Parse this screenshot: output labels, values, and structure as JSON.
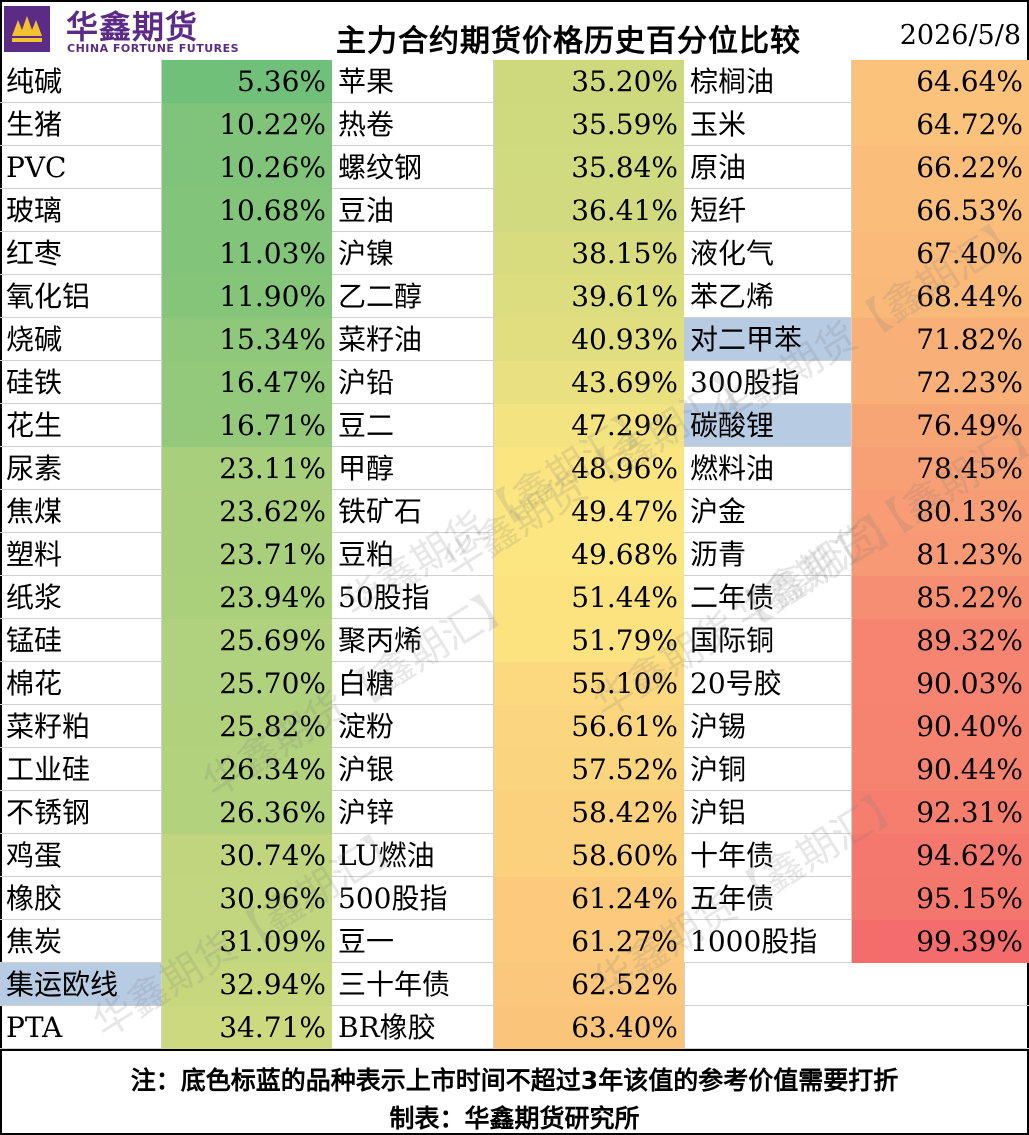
{
  "header": {
    "logo_cn": "华鑫期货",
    "logo_en": "CHINA FORTUNE FUTURES",
    "title": "主力合约期货价格历史百分位比较",
    "date": "2026/5/8"
  },
  "watermark": "华鑫期货【鑫期汇】",
  "colors": {
    "low": "#5fbb78",
    "mid": "#fde681",
    "high": "#f36b6c",
    "blue_flag": "#b7cbe3"
  },
  "chart_data": {
    "type": "table",
    "title": "主力合约期货价格历史百分位比较",
    "columns": [
      [
        {
          "name": "纯碱",
          "value": 5.36,
          "label": "5.36%"
        },
        {
          "name": "生猪",
          "value": 10.22,
          "label": "10.22%"
        },
        {
          "name": "PVC",
          "value": 10.26,
          "label": "10.26%"
        },
        {
          "name": "玻璃",
          "value": 10.68,
          "label": "10.68%"
        },
        {
          "name": "红枣",
          "value": 11.03,
          "label": "11.03%"
        },
        {
          "name": "氧化铝",
          "value": 11.9,
          "label": "11.90%"
        },
        {
          "name": "烧碱",
          "value": 15.34,
          "label": "15.34%"
        },
        {
          "name": "硅铁",
          "value": 16.47,
          "label": "16.47%"
        },
        {
          "name": "花生",
          "value": 16.71,
          "label": "16.71%"
        },
        {
          "name": "尿素",
          "value": 23.11,
          "label": "23.11%"
        },
        {
          "name": "焦煤",
          "value": 23.62,
          "label": "23.62%"
        },
        {
          "name": "塑料",
          "value": 23.71,
          "label": "23.71%"
        },
        {
          "name": "纸浆",
          "value": 23.94,
          "label": "23.94%"
        },
        {
          "name": "锰硅",
          "value": 25.69,
          "label": "25.69%"
        },
        {
          "name": "棉花",
          "value": 25.7,
          "label": "25.70%"
        },
        {
          "name": "菜籽粕",
          "value": 25.82,
          "label": "25.82%"
        },
        {
          "name": "工业硅",
          "value": 26.34,
          "label": "26.34%"
        },
        {
          "name": "不锈钢",
          "value": 26.36,
          "label": "26.36%"
        },
        {
          "name": "鸡蛋",
          "value": 30.74,
          "label": "30.74%"
        },
        {
          "name": "橡胶",
          "value": 30.96,
          "label": "30.96%"
        },
        {
          "name": "焦炭",
          "value": 31.09,
          "label": "31.09%"
        },
        {
          "name": "集运欧线",
          "value": 32.94,
          "label": "32.94%",
          "blue": true
        },
        {
          "name": "PTA",
          "value": 34.71,
          "label": "34.71%"
        }
      ],
      [
        {
          "name": "苹果",
          "value": 35.2,
          "label": "35.20%"
        },
        {
          "name": "热卷",
          "value": 35.59,
          "label": "35.59%"
        },
        {
          "name": "螺纹钢",
          "value": 35.84,
          "label": "35.84%"
        },
        {
          "name": "豆油",
          "value": 36.41,
          "label": "36.41%"
        },
        {
          "name": "沪镍",
          "value": 38.15,
          "label": "38.15%"
        },
        {
          "name": "乙二醇",
          "value": 39.61,
          "label": "39.61%"
        },
        {
          "name": "菜籽油",
          "value": 40.93,
          "label": "40.93%"
        },
        {
          "name": "沪铅",
          "value": 43.69,
          "label": "43.69%"
        },
        {
          "name": "豆二",
          "value": 47.29,
          "label": "47.29%"
        },
        {
          "name": "甲醇",
          "value": 48.96,
          "label": "48.96%"
        },
        {
          "name": "铁矿石",
          "value": 49.47,
          "label": "49.47%"
        },
        {
          "name": "豆粕",
          "value": 49.68,
          "label": "49.68%"
        },
        {
          "name": "50股指",
          "value": 51.44,
          "label": "51.44%"
        },
        {
          "name": "聚丙烯",
          "value": 51.79,
          "label": "51.79%"
        },
        {
          "name": "白糖",
          "value": 55.1,
          "label": "55.10%"
        },
        {
          "name": "淀粉",
          "value": 56.61,
          "label": "56.61%"
        },
        {
          "name": "沪银",
          "value": 57.52,
          "label": "57.52%"
        },
        {
          "name": "沪锌",
          "value": 58.42,
          "label": "58.42%"
        },
        {
          "name": "LU燃油",
          "value": 58.6,
          "label": "58.60%"
        },
        {
          "name": "500股指",
          "value": 61.24,
          "label": "61.24%"
        },
        {
          "name": "豆一",
          "value": 61.27,
          "label": "61.27%"
        },
        {
          "name": "三十年债",
          "value": 62.52,
          "label": "62.52%"
        },
        {
          "name": "BR橡胶",
          "value": 63.4,
          "label": "63.40%"
        }
      ],
      [
        {
          "name": "棕榈油",
          "value": 64.64,
          "label": "64.64%"
        },
        {
          "name": "玉米",
          "value": 64.72,
          "label": "64.72%"
        },
        {
          "name": "原油",
          "value": 66.22,
          "label": "66.22%"
        },
        {
          "name": "短纤",
          "value": 66.53,
          "label": "66.53%"
        },
        {
          "name": "液化气",
          "value": 67.4,
          "label": "67.40%"
        },
        {
          "name": "苯乙烯",
          "value": 68.44,
          "label": "68.44%"
        },
        {
          "name": "对二甲苯",
          "value": 71.82,
          "label": "71.82%",
          "blue": true
        },
        {
          "name": "300股指",
          "value": 72.23,
          "label": "72.23%"
        },
        {
          "name": "碳酸锂",
          "value": 76.49,
          "label": "76.49%",
          "blue": true
        },
        {
          "name": "燃料油",
          "value": 78.45,
          "label": "78.45%"
        },
        {
          "name": "沪金",
          "value": 80.13,
          "label": "80.13%"
        },
        {
          "name": "沥青",
          "value": 81.23,
          "label": "81.23%"
        },
        {
          "name": "二年债",
          "value": 85.22,
          "label": "85.22%"
        },
        {
          "name": "国际铜",
          "value": 89.32,
          "label": "89.32%"
        },
        {
          "name": "20号胶",
          "value": 90.03,
          "label": "90.03%"
        },
        {
          "name": "沪锡",
          "value": 90.4,
          "label": "90.40%"
        },
        {
          "name": "沪铜",
          "value": 90.44,
          "label": "90.44%"
        },
        {
          "name": "沪铝",
          "value": 92.31,
          "label": "92.31%"
        },
        {
          "name": "十年债",
          "value": 94.62,
          "label": "94.62%"
        },
        {
          "name": "五年债",
          "value": 95.15,
          "label": "95.15%"
        },
        {
          "name": "1000股指",
          "value": 99.39,
          "label": "99.39%"
        }
      ]
    ],
    "color_scale": "green-yellow-red by value"
  },
  "footer": {
    "note": "注：底色标蓝的品种表示上市时间不超过3年该值的参考价值需要打折",
    "credit": "制表：华鑫期货研究所"
  }
}
